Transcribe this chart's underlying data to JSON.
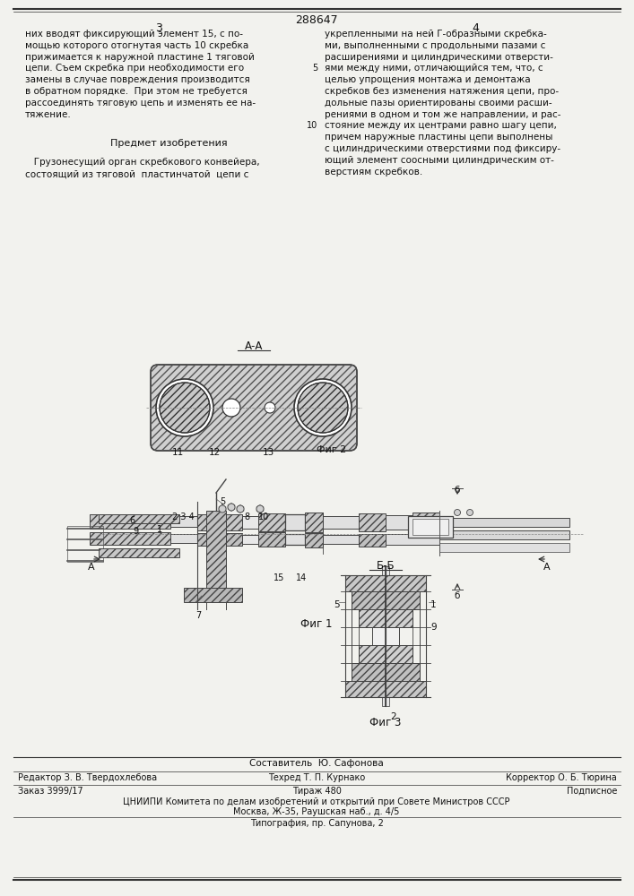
{
  "patent_number": "288647",
  "page_numbers": [
    "3",
    "4"
  ],
  "bg_color": "#f2f2ee",
  "text_color": "#1a1a1a",
  "left_text": [
    "них вводят фиксирующий элемент 15, с по-",
    "мощью которого отогнутая часть 10 скребка",
    "прижимается к наружной пластине 1 тяговой",
    "цепи. Съем скребка при необходимости его",
    "замены в случае повреждения производится",
    "в обратном порядке.  При этом не требуется",
    "рассоединять тяговую цепь и изменять ее на-",
    "тяжение."
  ],
  "predmet_title": "Предмет изобретения",
  "predmet_text": [
    "   Грузонесущий орган скребкового конвейера,",
    "состоящий из тяговой  пластинчатой  цепи с"
  ],
  "right_text": [
    "укрепленными на ней Г-образными скребка-",
    "ми, выполненными с продольными пазами с",
    "расширениями и цилиндрическими отверсти-",
    "ями между ними, отличающийся тем, что, с",
    "целью упрощения монтажа и демонтажа",
    "скребков без изменения натяжения цепи, про-",
    "дольные пазы ориентированы своими расши-",
    "рениями в одном и том же направлении, и рас-",
    "стояние между их центрами равно шагу цепи,",
    "причем наружные пластины цепи выполнены",
    "с цилиндрическими отверстиями под фиксиру-",
    "ющий элемент соосными цилиндрическим от-",
    "верстиям скребков."
  ],
  "fig1_caption": "Фиг 1",
  "fig2_caption": "Фиг 2",
  "fig3_caption": "Фиг 3",
  "fig2_label": "А-А",
  "fig3_label": "Б-Б",
  "footer_compose": "Составитель  Ю. Сафонова",
  "footer_editor": "Редактор З. В. Твердохлебова",
  "footer_tekhred": "Техред Т. П. Курнако",
  "footer_korr": "Корректор О. Б. Тюрина",
  "footer_zakaz": "Заказ 3999/17",
  "footer_tirazh": "Тираж 480",
  "footer_podp": "Подписное",
  "footer_cniipи": "ЦНИИПИ Комитета по делам изобретений и открытий при Совете Министров СССР",
  "footer_moscow": "Москва, Ж-35, Раушская наб., д. 4/5",
  "footer_tipogr": "Типография, пр. Сапунова, 2"
}
